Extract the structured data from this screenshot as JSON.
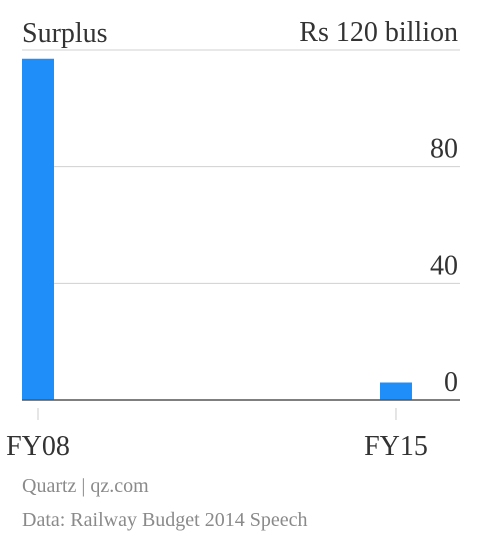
{
  "chart_data": {
    "type": "bar",
    "y_label": "Surplus",
    "categories": [
      "FY08",
      null,
      null,
      null,
      null,
      null,
      null,
      "FY15"
    ],
    "values": [
      117,
      null,
      null,
      null,
      null,
      null,
      null,
      6
    ],
    "color": "#1f8ef9",
    "ylim": [
      0,
      120
    ],
    "yticks": [
      0,
      40,
      80,
      {
        "value": 120,
        "label": "Rs 120 billion"
      }
    ],
    "grid": true,
    "source": "Quartz | qz.com",
    "note": "Data: Railway Budget 2014 Speech"
  }
}
